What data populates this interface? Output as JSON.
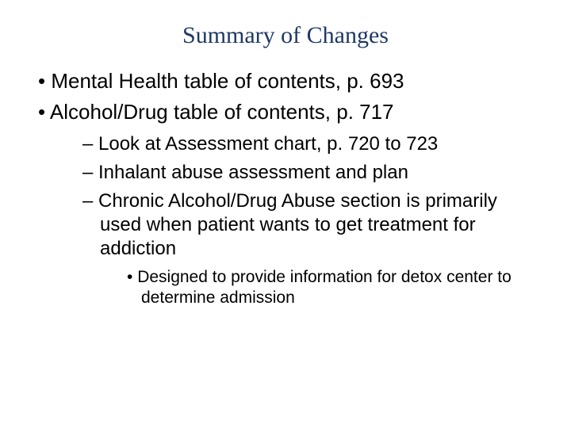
{
  "title": "Summary of Changes",
  "bullets": {
    "level1": [
      "Mental Health table of contents, p. 693",
      "Alcohol/Drug table of contents, p. 717"
    ],
    "level2": [
      "Look at Assessment chart, p. 720 to 723",
      "Inhalant abuse assessment and plan",
      "Chronic Alcohol/Drug Abuse section is primarily used when patient wants to get treatment for addiction"
    ],
    "level3": [
      "Designed to provide information for detox center to determine admission"
    ]
  },
  "colors": {
    "title": "#1f3864",
    "body": "#000000",
    "background": "#ffffff"
  },
  "fonts": {
    "title_family": "Times New Roman",
    "body_family": "Arial",
    "title_size_pt": 30,
    "lvl1_size_pt": 26,
    "lvl2_size_pt": 24,
    "lvl3_size_pt": 21
  }
}
